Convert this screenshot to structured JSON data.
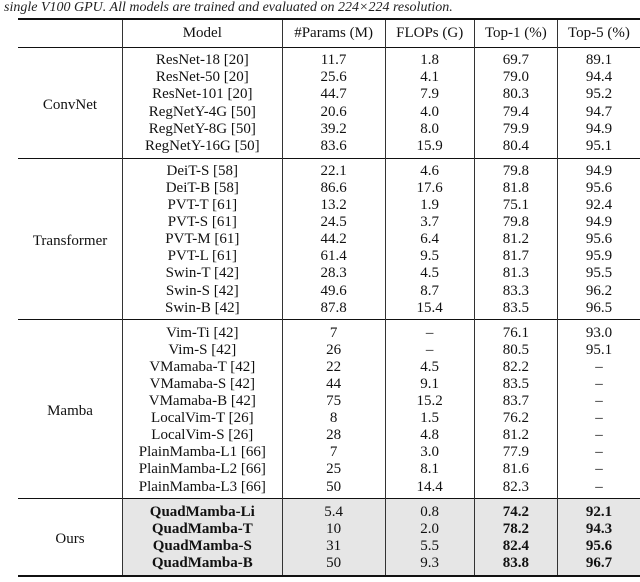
{
  "caption": "single V100 GPU. All models are trained and evaluated on 224×224 resolution.",
  "headers": [
    "",
    "Model",
    "#Params (M)",
    "FLOPs (G)",
    "Top-1 (%)",
    "Top-5 (%)"
  ],
  "groups": [
    {
      "name": "ConvNet",
      "rows": [
        [
          "ResNet-18 [20]",
          "11.7",
          "1.8",
          "69.7",
          "89.1"
        ],
        [
          "ResNet-50 [20]",
          "25.6",
          "4.1",
          "79.0",
          "94.4"
        ],
        [
          "ResNet-101 [20]",
          "44.7",
          "7.9",
          "80.3",
          "95.2"
        ],
        [
          "RegNetY-4G [50]",
          "20.6",
          "4.0",
          "79.4",
          "94.7"
        ],
        [
          "RegNetY-8G [50]",
          "39.2",
          "8.0",
          "79.9",
          "94.9"
        ],
        [
          "RegNetY-16G [50]",
          "83.6",
          "15.9",
          "80.4",
          "95.1"
        ]
      ]
    },
    {
      "name": "Transformer",
      "rows": [
        [
          "DeiT-S [58]",
          "22.1",
          "4.6",
          "79.8",
          "94.9"
        ],
        [
          "DeiT-B [58]",
          "86.6",
          "17.6",
          "81.8",
          "95.6"
        ],
        [
          "PVT-T [61]",
          "13.2",
          "1.9",
          "75.1",
          "92.4"
        ],
        [
          "PVT-S [61]",
          "24.5",
          "3.7",
          "79.8",
          "94.9"
        ],
        [
          "PVT-M [61]",
          "44.2",
          "6.4",
          "81.2",
          "95.6"
        ],
        [
          "PVT-L [61]",
          "61.4",
          "9.5",
          "81.7",
          "95.9"
        ],
        [
          "Swin-T [42]",
          "28.3",
          "4.5",
          "81.3",
          "95.5"
        ],
        [
          "Swin-S [42]",
          "49.6",
          "8.7",
          "83.3",
          "96.2"
        ],
        [
          "Swin-B [42]",
          "87.8",
          "15.4",
          "83.5",
          "96.5"
        ]
      ]
    },
    {
      "name": "Mamba",
      "rows": [
        [
          "Vim-Ti [42]",
          "7",
          "–",
          "76.1",
          "93.0"
        ],
        [
          "Vim-S [42]",
          "26",
          "–",
          "80.5",
          "95.1"
        ],
        [
          "VMamaba-T [42]",
          "22",
          "4.5",
          "82.2",
          "–"
        ],
        [
          "VMamaba-S [42]",
          "44",
          "9.1",
          "83.5",
          "–"
        ],
        [
          "VMamaba-B [42]",
          "75",
          "15.2",
          "83.7",
          "–"
        ],
        [
          "LocalVim-T [26]",
          "8",
          "1.5",
          "76.2",
          "–"
        ],
        [
          "LocalVim-S [26]",
          "28",
          "4.8",
          "81.2",
          "–"
        ],
        [
          "PlainMamba-L1 [66]",
          "7",
          "3.0",
          "77.9",
          "–"
        ],
        [
          "PlainMamba-L2 [66]",
          "25",
          "8.1",
          "81.6",
          "–"
        ],
        [
          "PlainMamba-L3 [66]",
          "50",
          "14.4",
          "82.3",
          "–"
        ]
      ]
    },
    {
      "name": "Ours",
      "highlight": "#e6e6e6",
      "rows": [
        [
          "QuadMamba-Li",
          "5.4",
          "0.8",
          "74.2",
          "92.1"
        ],
        [
          "QuadMamba-T",
          "10",
          "2.0",
          "78.2",
          "94.3"
        ],
        [
          "QuadMamba-S",
          "31",
          "5.5",
          "82.4",
          "95.6"
        ],
        [
          "QuadMamba-B",
          "50",
          "9.3",
          "83.8",
          "96.7"
        ]
      ]
    }
  ]
}
